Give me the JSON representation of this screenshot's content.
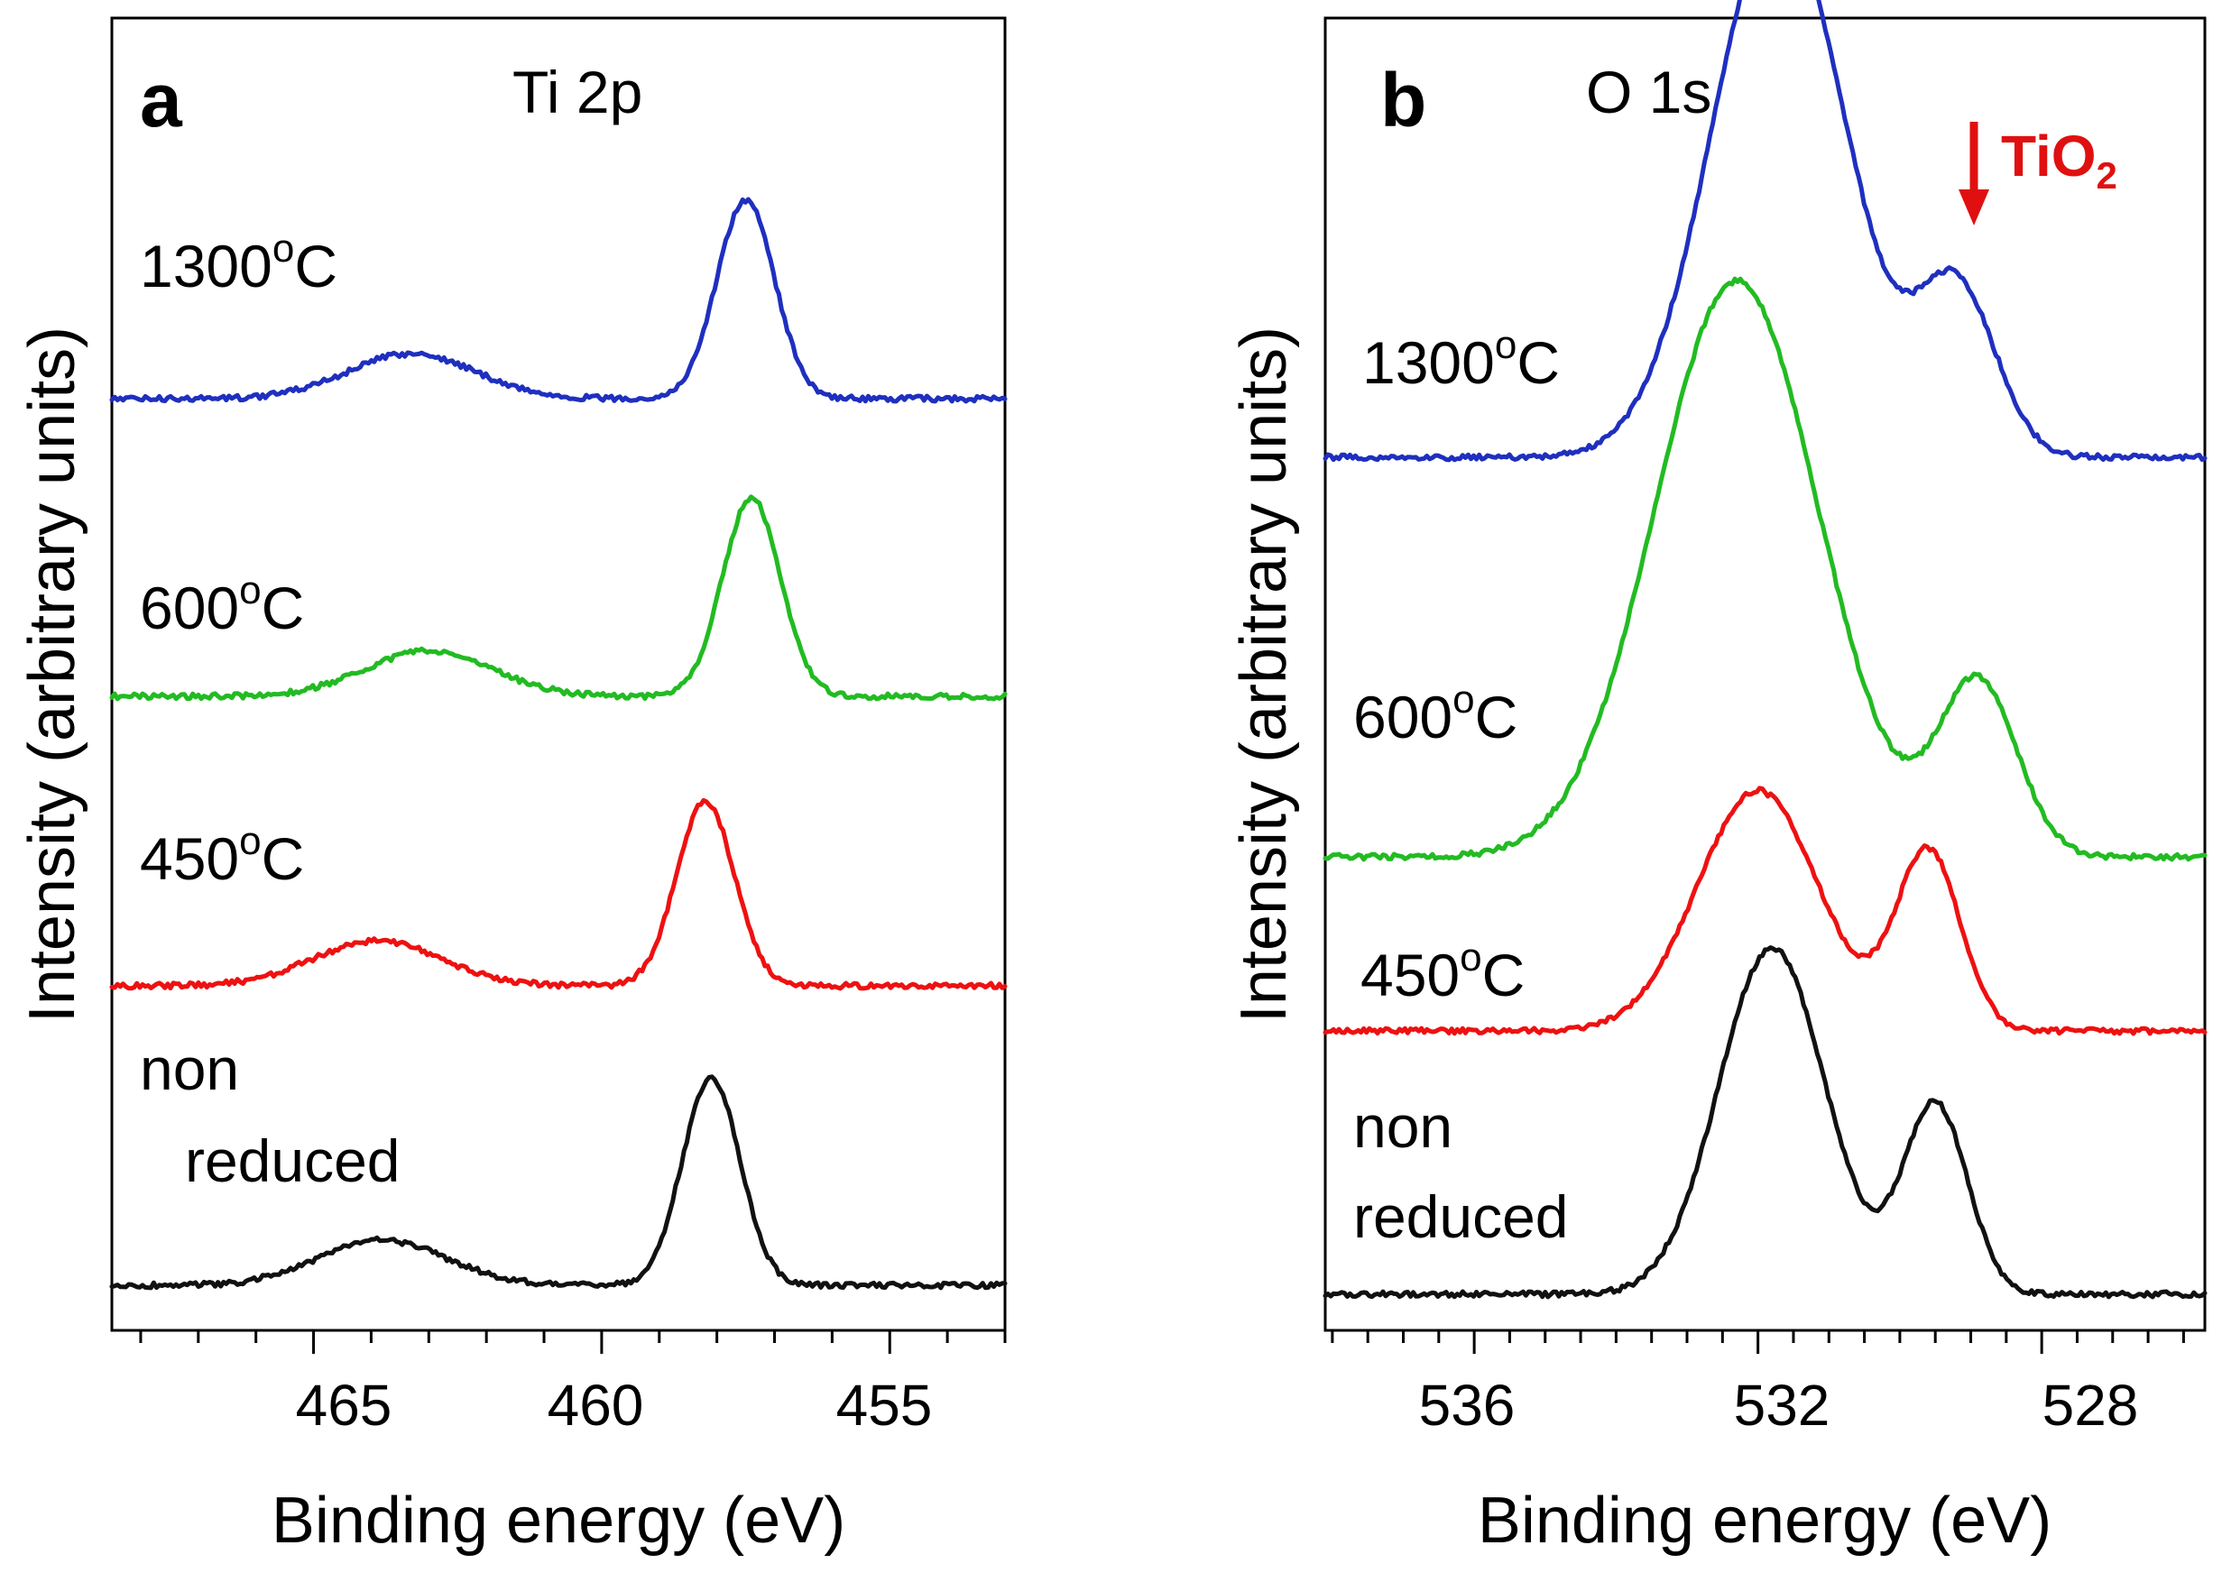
{
  "chart_data": [
    {
      "type": "line",
      "panel": "a",
      "title": "Ti 2p",
      "xlabel": "Binding energy (eV)",
      "ylabel": "Intensity (arbitrary units)",
      "xlim": [
        468.5,
        453
      ],
      "x_reversed": true,
      "xticks": [
        465,
        460,
        455
      ],
      "xtick_labels": [
        "465",
        "460",
        "455"
      ],
      "minor_tick_step": 1,
      "yticks": [],
      "series": [
        {
          "name": "1300oC",
          "label_main": "1300",
          "label_sup": "o",
          "label_tail": "C",
          "color": "#1f2fbf",
          "baseline": 8.0,
          "peaks": [
            {
              "center": 457.5,
              "height": 4.4,
              "width": 0.5
            },
            {
              "center": 463.3,
              "height": 1.0,
              "width": 1.1
            }
          ]
        },
        {
          "name": "600oC",
          "label_main": "600",
          "label_sup": "o",
          "label_tail": "C",
          "color": "#22bb22",
          "baseline": 5.3,
          "peaks": [
            {
              "center": 457.4,
              "height": 4.4,
              "width": 0.5
            },
            {
              "center": 463.0,
              "height": 1.0,
              "width": 1.1
            }
          ]
        },
        {
          "name": "450oC",
          "label_main": "450",
          "label_sup": "o",
          "label_tail": "C",
          "color": "#ee1111",
          "baseline": 2.7,
          "peaks": [
            {
              "center": 458.2,
              "height": 4.1,
              "width": 0.5
            },
            {
              "center": 463.9,
              "height": 1.0,
              "width": 1.1
            }
          ]
        },
        {
          "name": "non reduced",
          "label_main": "non",
          "label_line2": "reduced",
          "color": "#111111",
          "baseline": 0.0,
          "peaks": [
            {
              "center": 458.1,
              "height": 4.6,
              "width": 0.5
            },
            {
              "center": 463.8,
              "height": 1.0,
              "width": 1.1
            }
          ]
        }
      ]
    },
    {
      "type": "line",
      "panel": "b",
      "title": "O 1s",
      "xlabel": "Binding energy (eV)",
      "ylabel": "Intensity (arbitrary units)",
      "xlim": [
        538.1,
        525.7
      ],
      "x_reversed": true,
      "xticks": [
        536,
        532,
        528
      ],
      "xtick_labels": [
        "536",
        "532",
        "528"
      ],
      "minor_tick_step": 0.5,
      "yticks": [],
      "annotation": {
        "text_main": "TiO",
        "text_sub": "2",
        "x": 529.2,
        "color": "#e01010"
      },
      "series": [
        {
          "name": "1300oC",
          "label_main": "1300",
          "label_sup": "o",
          "label_tail": "C",
          "color": "#1f2fbf",
          "baseline": 8.2,
          "peaks": [
            {
              "center": 531.7,
              "height": 9.7,
              "width": 0.95
            },
            {
              "center": 529.2,
              "height": 3.0,
              "width": 0.55
            }
          ]
        },
        {
          "name": "600oC",
          "label_main": "600",
          "label_sup": "o",
          "label_tail": "C",
          "color": "#22bb22",
          "baseline": 4.0,
          "peaks": [
            {
              "center": 532.3,
              "height": 10.3,
              "width": 1.15
            },
            {
              "center": 528.9,
              "height": 3.1,
              "width": 0.55
            }
          ]
        },
        {
          "name": "450oC",
          "label_main": "450",
          "label_sup": "o",
          "label_tail": "C",
          "color": "#ee1111",
          "baseline": 2.4,
          "peaks": [
            {
              "center": 532.0,
              "height": 4.3,
              "width": 0.85
            },
            {
              "center": 529.6,
              "height": 3.2,
              "width": 0.45
            }
          ]
        },
        {
          "name": "non reduced",
          "label_main": "non",
          "label_line2": "reduced",
          "color": "#111111",
          "baseline": 0.0,
          "peaks": [
            {
              "center": 531.8,
              "height": 6.2,
              "width": 0.75
            },
            {
              "center": 529.5,
              "height": 3.4,
              "width": 0.45
            }
          ]
        }
      ]
    }
  ]
}
